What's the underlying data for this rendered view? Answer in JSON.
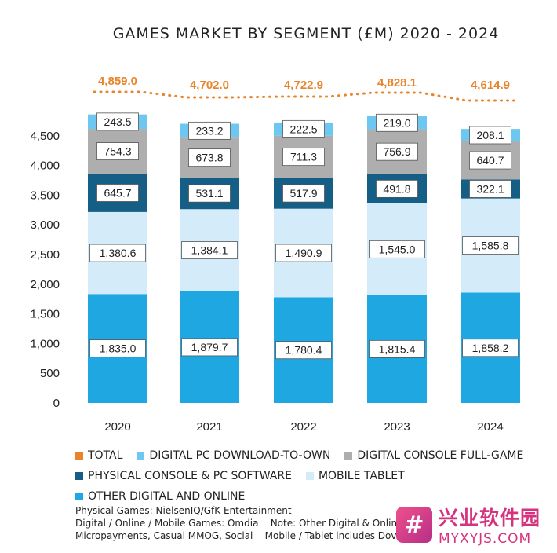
{
  "chart_data": {
    "type": "bar",
    "stacked": true,
    "title": "GAMES MARKET BY SEGMENT (£M) 2020 - 2024",
    "categories": [
      "2020",
      "2021",
      "2022",
      "2023",
      "2024"
    ],
    "ylim": [
      0,
      4800
    ],
    "yticks": [
      "0",
      "500",
      "1,000",
      "1,500",
      "2,000",
      "2,500",
      "3,000",
      "3,500",
      "4,000",
      "4,500"
    ],
    "ytick_values": [
      0,
      500,
      1000,
      1500,
      2000,
      2500,
      3000,
      3500,
      4000,
      4500
    ],
    "series": [
      {
        "name": "OTHER DIGITAL AND ONLINE",
        "color": "#1ea7e1",
        "values": [
          1835.0,
          1879.7,
          1780.4,
          1815.4,
          1858.2
        ],
        "labels": [
          "1,835.0",
          "1,879.7",
          "1,780.4",
          "1,815.4",
          "1,858.2"
        ]
      },
      {
        "name": "MOBILE TABLET",
        "color": "#d4ecfa",
        "values": [
          1380.6,
          1384.1,
          1490.9,
          1545.0,
          1585.8
        ],
        "labels": [
          "1,380.6",
          "1,384.1",
          "1,490.9",
          "1,545.0",
          "1,585.8"
        ]
      },
      {
        "name": "PHYSICAL CONSOLE & PC SOFTWARE",
        "color": "#155f86",
        "values": [
          645.7,
          531.1,
          517.9,
          491.8,
          322.1
        ],
        "labels": [
          "645.7",
          "531.1",
          "517.9",
          "491.8",
          "322.1"
        ]
      },
      {
        "name": "DIGITAL CONSOLE FULL-GAME",
        "color": "#aeaeae",
        "values": [
          754.3,
          673.8,
          711.3,
          756.9,
          640.7
        ],
        "labels": [
          "754.3",
          "673.8",
          "711.3",
          "756.9",
          "640.7"
        ]
      },
      {
        "name": "DIGITAL PC DOWNLOAD-TO-OWN",
        "color": "#6cc8f0",
        "values": [
          243.5,
          233.2,
          222.5,
          219.0,
          208.1
        ],
        "labels": [
          "243.5",
          "233.2",
          "222.5",
          "219.0",
          "208.1"
        ]
      }
    ],
    "total": {
      "name": "TOTAL",
      "color": "#e8842a",
      "values": [
        4859.0,
        4702.0,
        4722.9,
        4828.1,
        4614.9
      ],
      "labels": [
        "4,859.0",
        "4,702.0",
        "4,722.9",
        "4,828.1",
        "4,614.9"
      ]
    },
    "legend": [
      {
        "label": "TOTAL",
        "color": "#e8842a"
      },
      {
        "label": "DIGITAL PC DOWNLOAD-TO-OWN",
        "color": "#6cc8f0"
      },
      {
        "label": "DIGITAL CONSOLE FULL-GAME",
        "color": "#aeaeae"
      },
      {
        "label": "PHYSICAL CONSOLE & PC SOFTWARE",
        "color": "#155f86"
      },
      {
        "label": "MOBILE TABLET",
        "color": "#d4ecfa"
      },
      {
        "label": "OTHER DIGITAL AND ONLINE",
        "color": "#1ea7e1"
      }
    ],
    "legend_placement": "bottom",
    "grid": false
  },
  "source": {
    "line1": "Physical Games: NielsenIQ/GfK Entertainment",
    "line2a": "Digital / Online / Mobile Games: Omdia",
    "line2b": "Note: Other Digital & Online",
    "line3a": "Micropayments, Casual MMOG, Social",
    "line3b": "Mobile / Tablet includes Dov"
  },
  "watermark": {
    "logo_glyph": "#",
    "cn": "兴业软件园",
    "en": "MYXYJS.COM"
  }
}
